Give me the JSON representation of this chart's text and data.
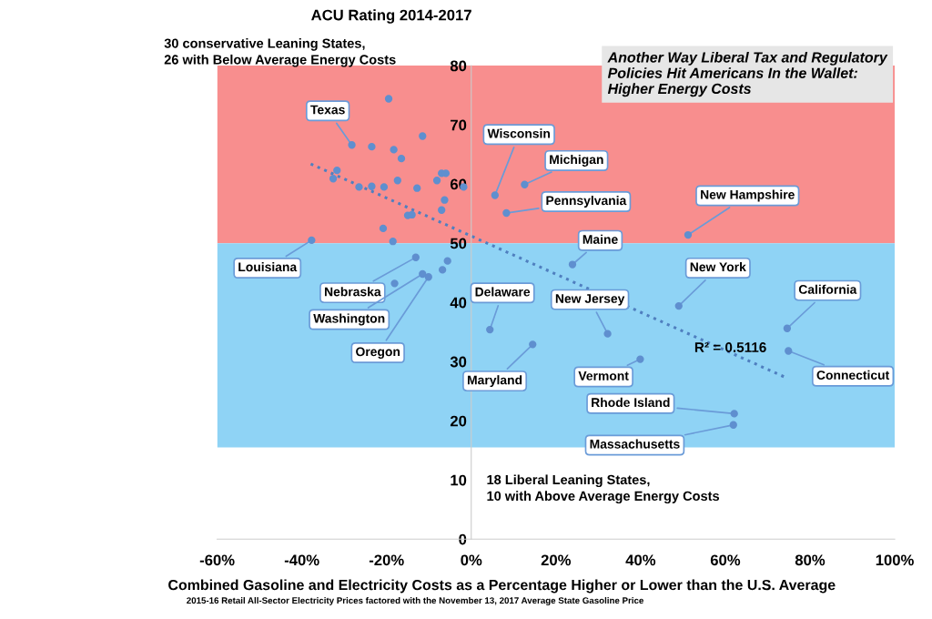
{
  "chart_data": {
    "type": "scatter",
    "title": "ACU Rating 2014-2017",
    "xlabel": "Combined Gasoline and Electricity Costs as a Percentage Higher or Lower than the U.S. Average",
    "xlim": [
      -60,
      100
    ],
    "xticks": [
      {
        "value": -60,
        "label": "-60%"
      },
      {
        "value": -40,
        "label": "-40%"
      },
      {
        "value": -20,
        "label": "-20%"
      },
      {
        "value": 0,
        "label": "0%"
      },
      {
        "value": 20,
        "label": "20%"
      },
      {
        "value": 40,
        "label": "40%"
      },
      {
        "value": 60,
        "label": "60%"
      },
      {
        "value": 80,
        "label": "80%"
      },
      {
        "value": 100,
        "label": "100%"
      }
    ],
    "ylim": [
      0,
      80
    ],
    "yticks": [
      0,
      10,
      20,
      30,
      40,
      50,
      60,
      70,
      80
    ],
    "grid": false,
    "legend": false,
    "marker": "circle",
    "bands": [
      {
        "axis": "y",
        "from": 50,
        "to": 80,
        "color": "#f88e8e"
      },
      {
        "axis": "y",
        "from": 15.5,
        "to": 50,
        "color": "#8fd3f5"
      }
    ],
    "series": [
      {
        "color": "#5f8fcf",
        "x": [
          -19.5,
          -28.2,
          -23.5,
          -18.3,
          -16.5,
          -11.5,
          -31.7,
          -32.6,
          -26.5,
          -23.5,
          -20.6,
          -17.4,
          -12.8,
          -7.0,
          -6.0,
          -8.1,
          -1.8,
          -6.3,
          -7.0,
          -15.0,
          -14.0,
          -20.8,
          -37.7,
          -18.5,
          -13.1,
          -5.6,
          -6.8,
          -11.5,
          -10.1,
          -18.1,
          5.6,
          12.6,
          8.3,
          51.2,
          23.9,
          49.0,
          4.4,
          32.2,
          74.6,
          74.9,
          39.9,
          14.5,
          62.1,
          61.9
        ],
        "values": [
          74.4,
          66.6,
          66.3,
          65.8,
          64.3,
          68.1,
          62.3,
          60.9,
          59.5,
          59.6,
          59.5,
          60.6,
          59.3,
          61.8,
          61.8,
          60.6,
          59.5,
          57.3,
          55.6,
          54.7,
          54.8,
          52.5,
          50.5,
          50.3,
          47.6,
          47.0,
          45.5,
          44.8,
          44.3,
          43.2,
          58.1,
          59.9,
          55.1,
          51.4,
          46.4,
          39.4,
          35.4,
          34.7,
          35.6,
          31.8,
          30.4,
          32.9,
          21.2,
          19.3
        ]
      },
      {
        "type": "line",
        "color": "#4f7fbf",
        "line_style": "dotted",
        "marker": "none",
        "x": [
          -37.9,
          74.6
        ],
        "values": [
          63.4,
          27.2
        ]
      }
    ],
    "annotations": [
      {
        "text": "Texas",
        "x": -28.2,
        "y": 66.6
      },
      {
        "text": "Louisiana",
        "x": -37.7,
        "y": 50.5
      },
      {
        "text": "Nebraska",
        "x": -13.1,
        "y": 47.6
      },
      {
        "text": "Washington",
        "x": -11.5,
        "y": 44.8
      },
      {
        "text": "Oregon",
        "x": -10.1,
        "y": 44.3
      },
      {
        "text": "Wisconsin",
        "x": 5.6,
        "y": 58.1
      },
      {
        "text": "Michigan",
        "x": 12.6,
        "y": 59.9
      },
      {
        "text": "Pennsylvania",
        "x": 8.3,
        "y": 55.1
      },
      {
        "text": "New Hampshire",
        "x": 51.2,
        "y": 51.4
      },
      {
        "text": "Maine",
        "x": 23.9,
        "y": 46.4
      },
      {
        "text": "New York",
        "x": 49.0,
        "y": 39.4
      },
      {
        "text": "Delaware",
        "x": 4.4,
        "y": 35.4
      },
      {
        "text": "New Jersey",
        "x": 32.2,
        "y": 34.7
      },
      {
        "text": "California",
        "x": 74.6,
        "y": 35.6
      },
      {
        "text": "Connecticut",
        "x": 74.9,
        "y": 31.8
      },
      {
        "text": "Vermont",
        "x": 39.9,
        "y": 30.4
      },
      {
        "text": "Maryland",
        "x": 14.5,
        "y": 32.9
      },
      {
        "text": "Rhode Island",
        "x": 62.1,
        "y": 21.2
      },
      {
        "text": "Massachusetts",
        "x": 61.9,
        "y": 19.3
      },
      "30 conservative Leaning States,\n26 with Below Average Energy Costs",
      "Another Way Liberal Tax and Regulatory\nPolicies Hit Americans In the Wallet:\nHigher Energy Costs",
      "R² = 0.5116",
      "18 Liberal Leaning States,\n10 with Above Average Energy Costs",
      "2015-16 Retail All-Sector Electricity Prices factored with the November 13, 2017 Average State Gasoline Price"
    ]
  }
}
